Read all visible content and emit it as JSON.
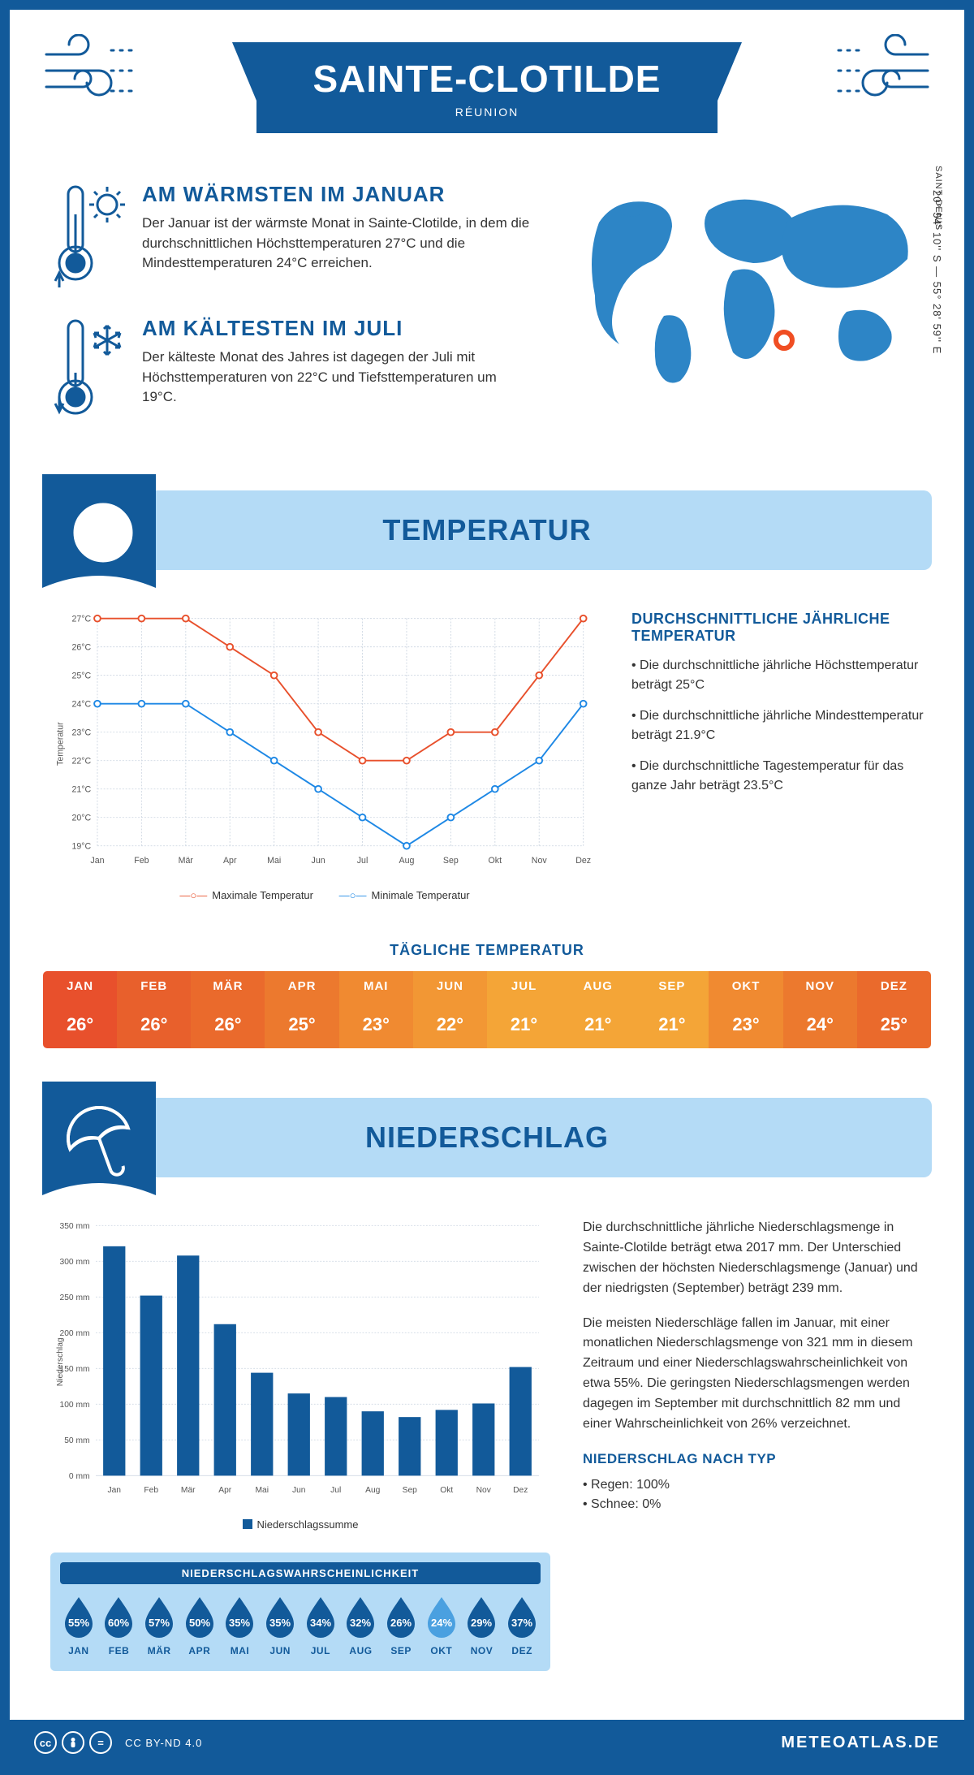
{
  "header": {
    "title": "SAINTE-CLOTILDE",
    "subtitle": "RÉUNION"
  },
  "location": {
    "capital_label": "SAINT-DENIS",
    "coords": "20° 54' 10'' S — 55° 28' 59'' E",
    "marker_color": "#f04e23"
  },
  "facts": {
    "warm": {
      "title": "AM WÄRMSTEN IM JANUAR",
      "text": "Der Januar ist der wärmste Monat in Sainte-Clotilde, in dem die durchschnittlichen Höchsttemperaturen 27°C und die Mindesttemperaturen 24°C erreichen."
    },
    "cold": {
      "title": "AM KÄLTESTEN IM JULI",
      "text": "Der kälteste Monat des Jahres ist dagegen der Juli mit Höchsttemperaturen von 22°C und Tiefsttemperaturen um 19°C."
    }
  },
  "sections": {
    "temperature": "TEMPERATUR",
    "precipitation": "NIEDERSCHLAG"
  },
  "months_short": [
    "Jan",
    "Feb",
    "Mär",
    "Apr",
    "Mai",
    "Jun",
    "Jul",
    "Aug",
    "Sep",
    "Okt",
    "Nov",
    "Dez"
  ],
  "months_upper": [
    "JAN",
    "FEB",
    "MÄR",
    "APR",
    "MAI",
    "JUN",
    "JUL",
    "AUG",
    "SEP",
    "OKT",
    "NOV",
    "DEZ"
  ],
  "temp_chart": {
    "type": "line",
    "ylabel": "Temperatur",
    "ylim": [
      19,
      27
    ],
    "ytick_step": 1,
    "max_series": [
      27,
      27,
      27,
      26,
      25,
      23,
      22,
      22,
      23,
      23,
      25,
      27
    ],
    "min_series": [
      24,
      24,
      24,
      23,
      22,
      21,
      20,
      19,
      20,
      21,
      22,
      24
    ],
    "max_color": "#e8502c",
    "min_color": "#1e88e5",
    "grid_color": "#cfd8e3",
    "legend_max": "Maximale Temperatur",
    "legend_min": "Minimale Temperatur"
  },
  "temp_info": {
    "title": "DURCHSCHNITTLICHE JÄHRLICHE TEMPERATUR",
    "bullets": [
      "• Die durchschnittliche jährliche Höchsttemperatur beträgt 25°C",
      "• Die durchschnittliche jährliche Mindesttemperatur beträgt 21.9°C",
      "• Die durchschnittliche Tagestemperatur für das ganze Jahr beträgt 23.5°C"
    ]
  },
  "daily_temp": {
    "title": "TÄGLICHE TEMPERATUR",
    "values": [
      "26°",
      "26°",
      "26°",
      "25°",
      "23°",
      "22°",
      "21°",
      "21°",
      "21°",
      "23°",
      "24°",
      "25°"
    ],
    "header_colors": [
      "#e8502c",
      "#e8602c",
      "#ea6a2c",
      "#ec792e",
      "#f08a31",
      "#f29734",
      "#f4a537",
      "#f4a537",
      "#f4a537",
      "#f08a31",
      "#ec792e",
      "#ea6a2c"
    ],
    "value_colors": [
      "#e8502c",
      "#e8602c",
      "#ea6a2c",
      "#ec792e",
      "#f08a31",
      "#f29734",
      "#f4a537",
      "#f4a537",
      "#f4a537",
      "#f08a31",
      "#ec792e",
      "#ea6a2c"
    ]
  },
  "precip_chart": {
    "type": "bar",
    "ylabel": "Niederschlag",
    "ylim": [
      0,
      350
    ],
    "ytick_step": 50,
    "values": [
      321,
      252,
      308,
      212,
      144,
      115,
      110,
      90,
      82,
      92,
      101,
      152
    ],
    "bar_color": "#125a9a",
    "grid_color": "#cfd8e3",
    "legend": "Niederschlagssumme"
  },
  "precip_text": {
    "p1": "Die durchschnittliche jährliche Niederschlagsmenge in Sainte-Clotilde beträgt etwa 2017 mm. Der Unterschied zwischen der höchsten Niederschlagsmenge (Januar) und der niedrigsten (September) beträgt 239 mm.",
    "p2": "Die meisten Niederschläge fallen im Januar, mit einer monatlichen Niederschlagsmenge von 321 mm in diesem Zeitraum und einer Niederschlagswahrscheinlichkeit von etwa 55%. Die geringsten Niederschlagsmengen werden dagegen im September mit durchschnittlich 82 mm und einer Wahrscheinlichkeit von 26% verzeichnet.",
    "type_title": "NIEDERSCHLAG NACH TYP",
    "type_rain": "• Regen: 100%",
    "type_snow": "• Schnee: 0%"
  },
  "probability": {
    "title": "NIEDERSCHLAGSWAHRSCHEINLICHKEIT",
    "values": [
      "55%",
      "60%",
      "57%",
      "50%",
      "35%",
      "35%",
      "34%",
      "32%",
      "26%",
      "24%",
      "29%",
      "37%"
    ],
    "drop_dark": "#125a9a",
    "drop_light": "#4aa0e0",
    "lowest_index": 9
  },
  "footer": {
    "license": "CC BY-ND 4.0",
    "brand": "METEOATLAS.DE"
  },
  "colors": {
    "primary": "#125a9a",
    "light_blue": "#b4dbf6",
    "map_fill": "#2d85c6"
  }
}
